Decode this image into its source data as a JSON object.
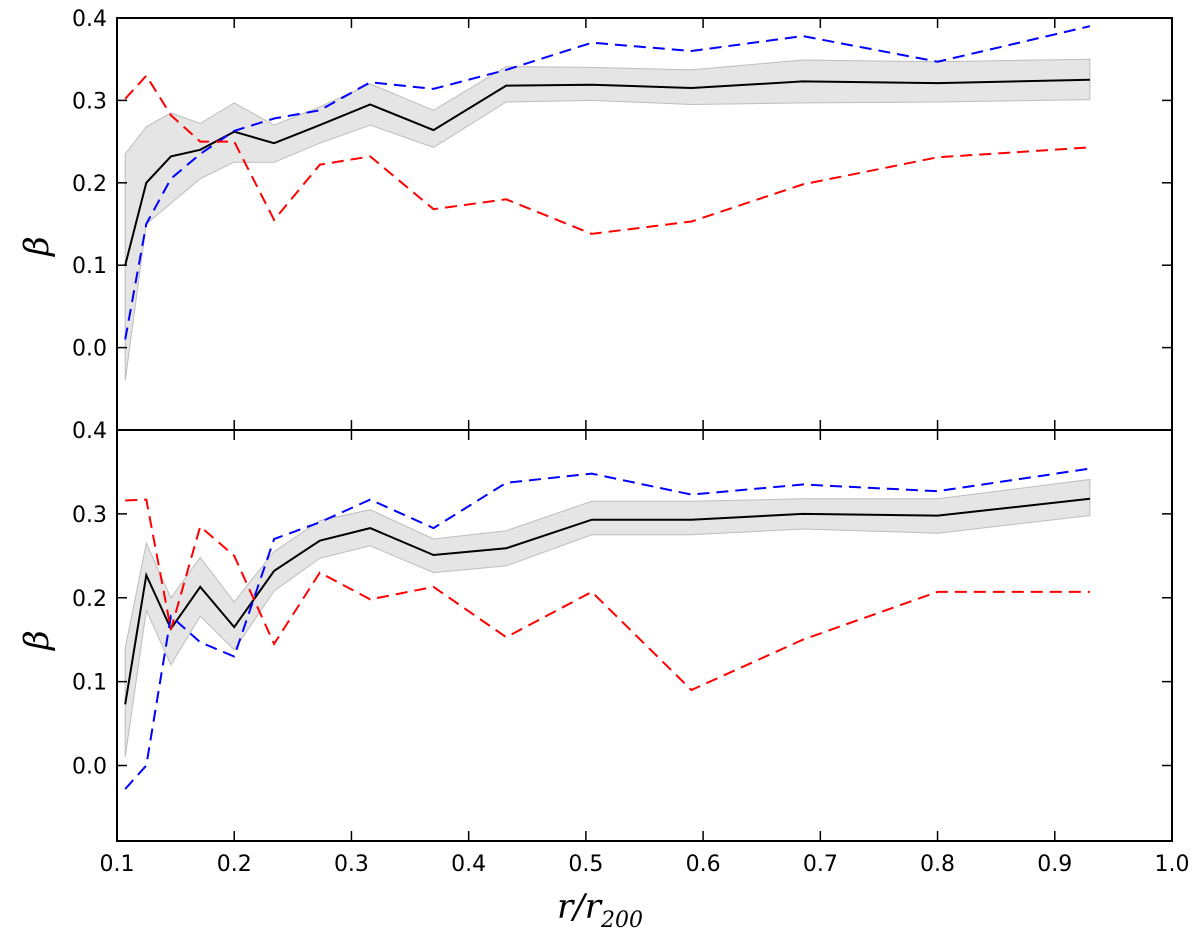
{
  "chart_data": [
    {
      "type": "line",
      "panel": "top",
      "ylabel": "β",
      "xlim": [
        0.1,
        1.0
      ],
      "ylim": [
        -0.1,
        0.4
      ],
      "yticks": [
        0.0,
        0.1,
        0.2,
        0.3,
        0.4
      ],
      "ytick_labels": [
        "0.0",
        "0.1",
        "0.2",
        "0.3",
        "0.4"
      ],
      "grid": false,
      "x": [
        0.107,
        0.125,
        0.146,
        0.171,
        0.2,
        0.234,
        0.273,
        0.316,
        0.37,
        0.432,
        0.505,
        0.59,
        0.685,
        0.8,
        0.93
      ],
      "series": [
        {
          "color": "#000000",
          "style": "solid",
          "values": [
            0.1,
            0.2,
            0.232,
            0.24,
            0.262,
            0.248,
            0.27,
            0.295,
            0.264,
            0.318,
            0.319,
            0.315,
            0.323,
            0.321,
            0.325
          ]
        },
        {
          "color": "#0000ff",
          "style": "dashed",
          "values": [
            0.01,
            0.15,
            0.205,
            0.235,
            0.263,
            0.278,
            0.288,
            0.322,
            0.314,
            0.337,
            0.37,
            0.36,
            0.378,
            0.347,
            0.39
          ]
        },
        {
          "color": "#ff0000",
          "style": "dashed",
          "values": [
            0.302,
            0.33,
            0.282,
            0.25,
            0.25,
            0.155,
            0.222,
            0.232,
            0.168,
            0.18,
            0.138,
            0.153,
            0.198,
            0.231,
            0.243
          ]
        }
      ],
      "band": {
        "color": "#d3d3d3",
        "lower": [
          -0.04,
          0.15,
          0.175,
          0.205,
          0.225,
          0.225,
          0.248,
          0.27,
          0.243,
          0.298,
          0.3,
          0.295,
          0.297,
          0.298,
          0.301
        ],
        "upper": [
          0.235,
          0.268,
          0.285,
          0.272,
          0.297,
          0.27,
          0.292,
          0.32,
          0.288,
          0.341,
          0.34,
          0.337,
          0.349,
          0.347,
          0.35
        ]
      }
    },
    {
      "type": "line",
      "panel": "bottom",
      "xlabel": "r/r200",
      "ylabel": "β",
      "xlim": [
        0.1,
        1.0
      ],
      "ylim": [
        -0.09,
        0.4
      ],
      "yticks": [
        0.0,
        0.1,
        0.2,
        0.3,
        0.4
      ],
      "ytick_labels": [
        "0.0",
        "0.1",
        "0.2",
        "0.3",
        "0.4"
      ],
      "xticks": [
        0.1,
        0.2,
        0.3,
        0.4,
        0.5,
        0.6,
        0.7,
        0.8,
        0.9,
        1.0
      ],
      "xtick_labels": [
        "0.1",
        "0.2",
        "0.3",
        "0.4",
        "0.5",
        "0.6",
        "0.7",
        "0.8",
        "0.9",
        "1.0"
      ],
      "grid": false,
      "x": [
        0.107,
        0.125,
        0.146,
        0.171,
        0.2,
        0.234,
        0.273,
        0.316,
        0.37,
        0.432,
        0.505,
        0.59,
        0.685,
        0.8,
        0.93
      ],
      "series": [
        {
          "color": "#000000",
          "style": "solid",
          "values": [
            0.073,
            0.227,
            0.163,
            0.213,
            0.165,
            0.232,
            0.268,
            0.283,
            0.251,
            0.259,
            0.293,
            0.293,
            0.3,
            0.298,
            0.318
          ]
        },
        {
          "color": "#0000ff",
          "style": "dashed",
          "values": [
            -0.028,
            0.0,
            0.178,
            0.147,
            0.13,
            0.27,
            0.29,
            0.317,
            0.283,
            0.337,
            0.348,
            0.323,
            0.335,
            0.327,
            0.354
          ]
        },
        {
          "color": "#ff0000",
          "style": "dashed",
          "values": [
            0.316,
            0.317,
            0.162,
            0.285,
            0.25,
            0.145,
            0.23,
            0.198,
            0.213,
            0.153,
            0.207,
            0.09,
            0.15,
            0.207,
            0.207
          ]
        }
      ],
      "band": {
        "color": "#d3d3d3",
        "lower": [
          0.01,
          0.185,
          0.12,
          0.178,
          0.138,
          0.208,
          0.247,
          0.262,
          0.23,
          0.238,
          0.275,
          0.275,
          0.282,
          0.277,
          0.298
        ],
        "upper": [
          0.14,
          0.265,
          0.2,
          0.248,
          0.195,
          0.255,
          0.292,
          0.305,
          0.27,
          0.28,
          0.315,
          0.315,
          0.318,
          0.318,
          0.341
        ]
      }
    }
  ],
  "labels": {
    "x_main": "r/r",
    "x_sub": "200",
    "y_top": "β",
    "y_bottom": "β"
  }
}
